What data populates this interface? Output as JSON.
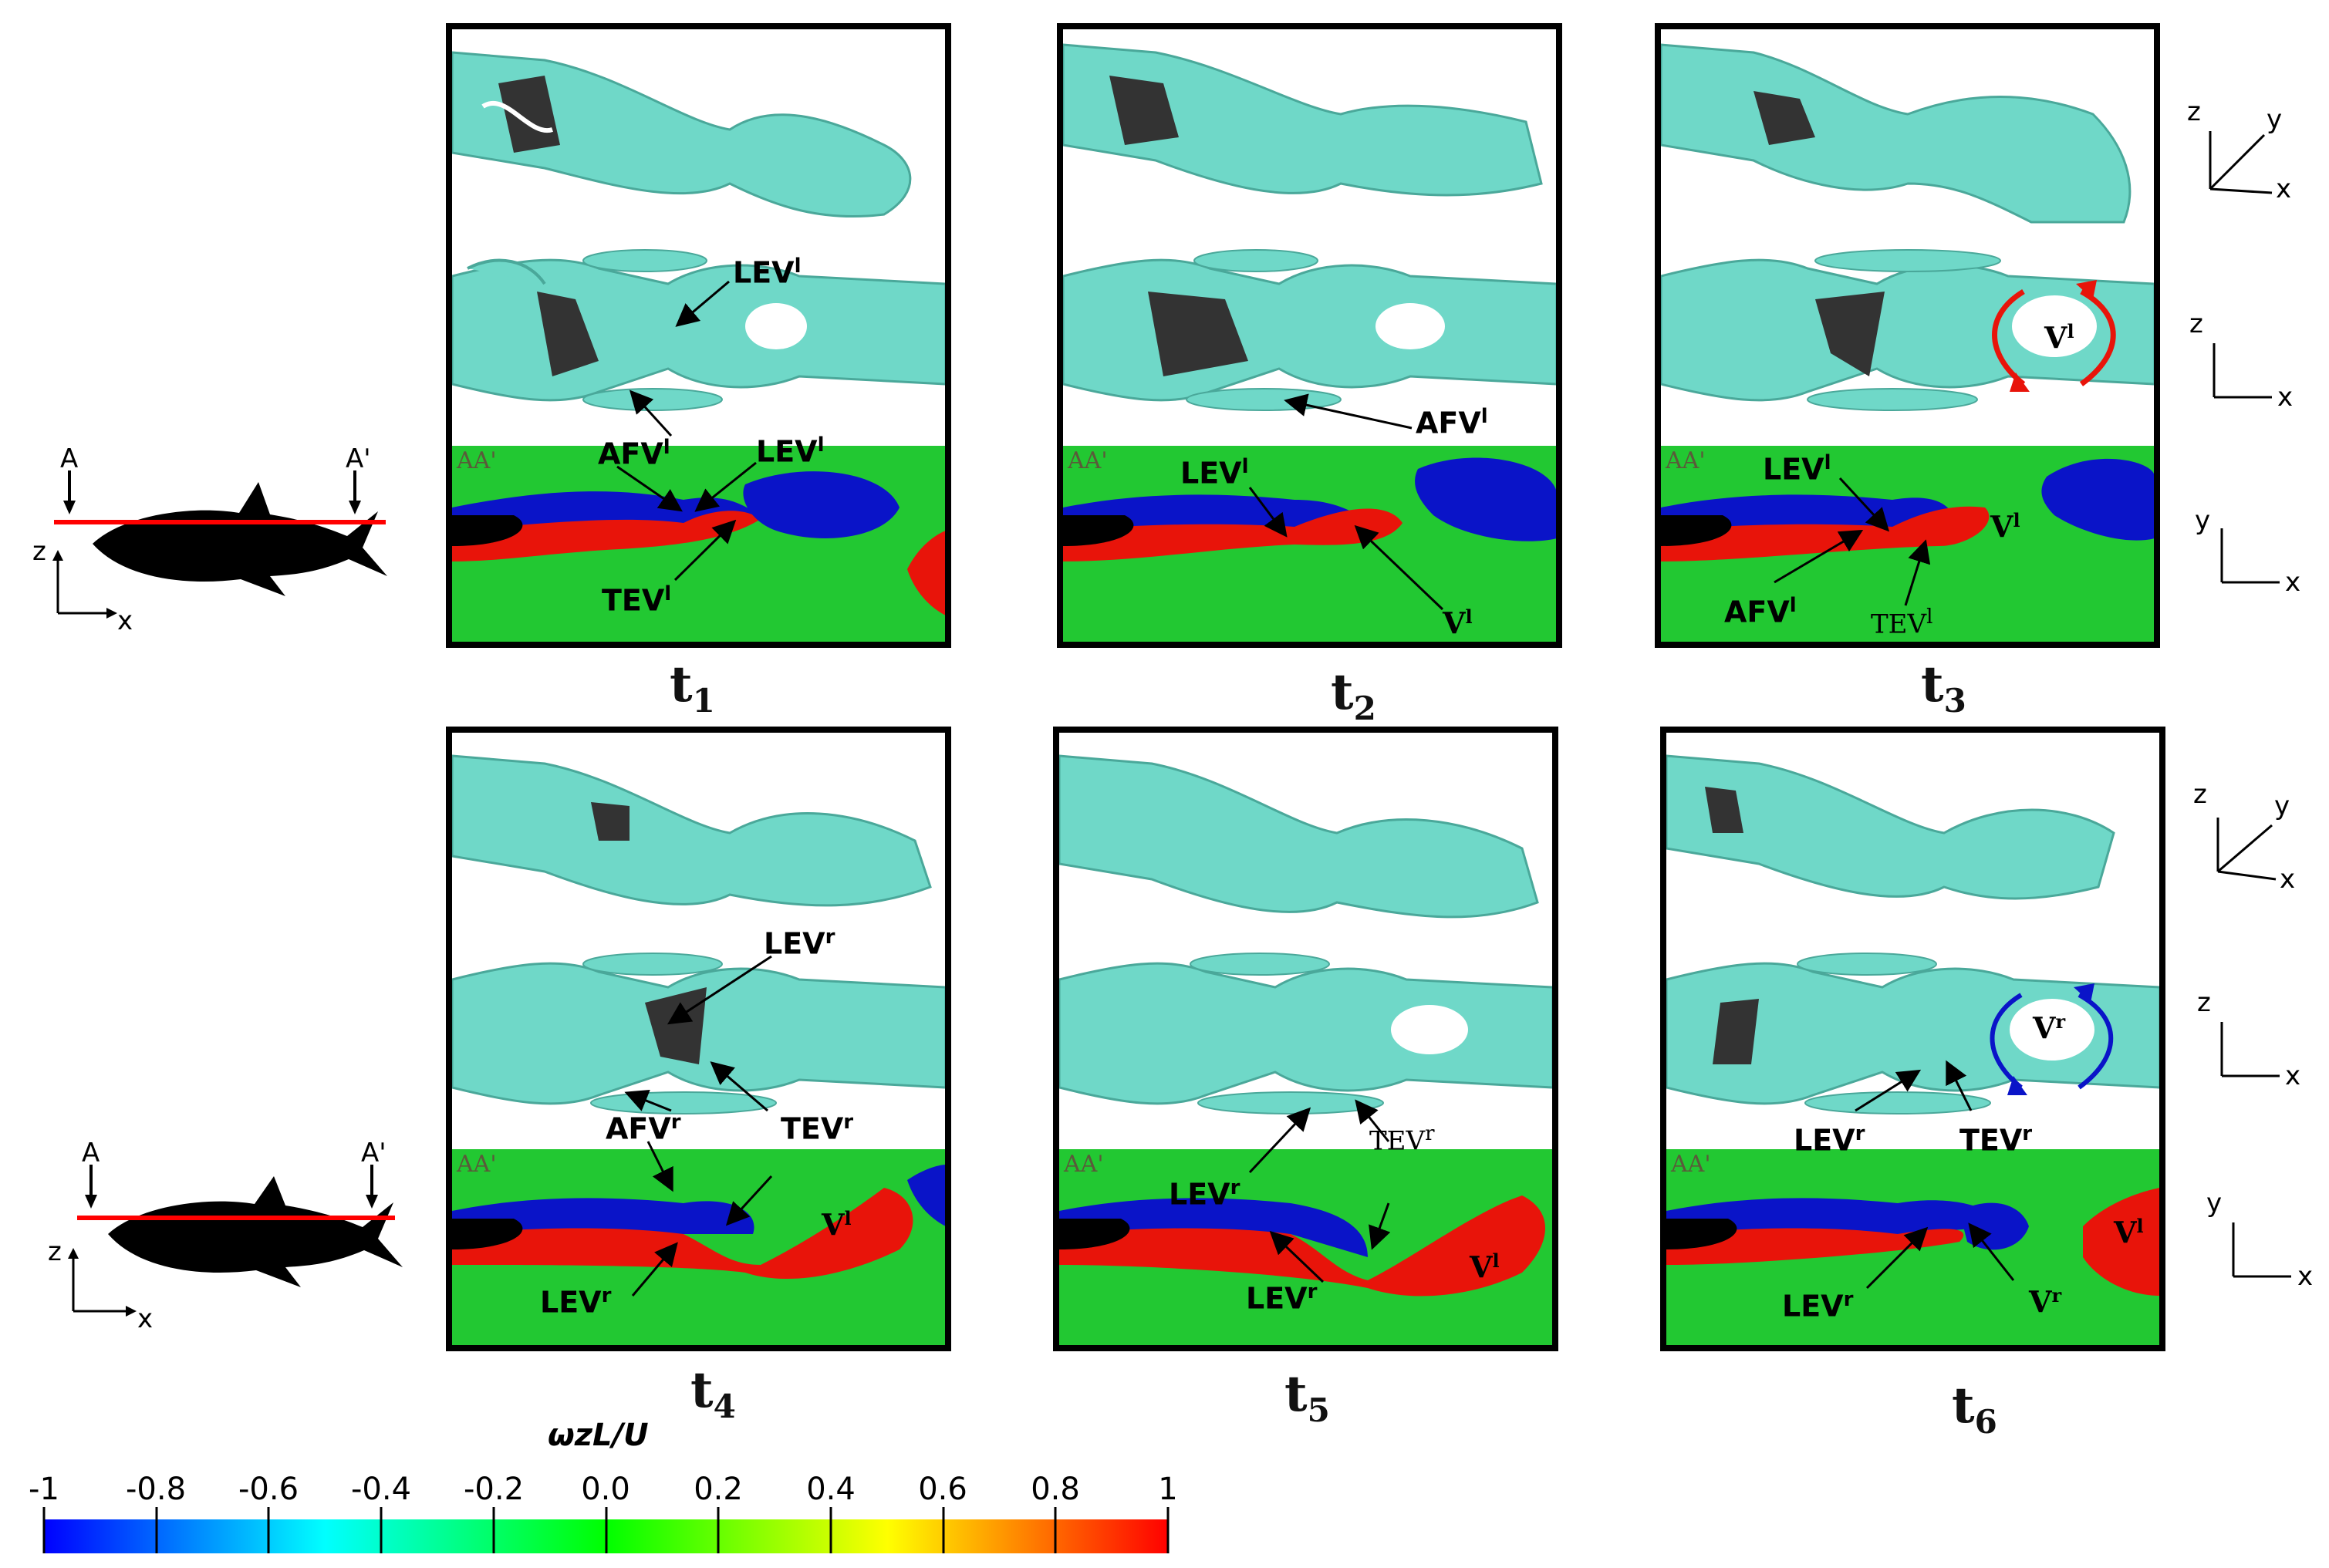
{
  "time_labels": {
    "t1": {
      "base": "t",
      "sub": "1"
    },
    "t2": {
      "base": "t",
      "sub": "2"
    },
    "t3": {
      "base": "t",
      "sub": "3"
    },
    "t4": {
      "base": "t",
      "sub": "4"
    },
    "t5": {
      "base": "t",
      "sub": "5"
    },
    "t6": {
      "base": "t",
      "sub": "6"
    }
  },
  "section_label": "AA'",
  "fish_diagram": {
    "cut_start": "A",
    "cut_end": "A'",
    "axis_vertical": "z",
    "axis_horizontal": "x"
  },
  "axes_3d": {
    "z": "z",
    "y": "y",
    "x": "x"
  },
  "annotations": {
    "lev": "LEV",
    "afv": "AFV",
    "tev": "TEV",
    "v": "V",
    "sup_left": "l",
    "sup_right": "r"
  },
  "colorbar": {
    "title": "ωzL/U",
    "ticks": [
      "-1",
      "-0.8",
      "-0.6",
      "-0.4",
      "-0.2",
      "0.0",
      "0.2",
      "0.4",
      "0.6",
      "0.8",
      "1"
    ],
    "colors": [
      "#0000ff",
      "#00ffff",
      "#00ff00",
      "#ffff00",
      "#ff0000"
    ]
  },
  "colors": {
    "positive": "#e8140a",
    "negative": "#0a14c8",
    "background": "#22c832",
    "isosurface": "#6fd8c8",
    "fish": "#000000",
    "cut_line": "#ff0000"
  }
}
